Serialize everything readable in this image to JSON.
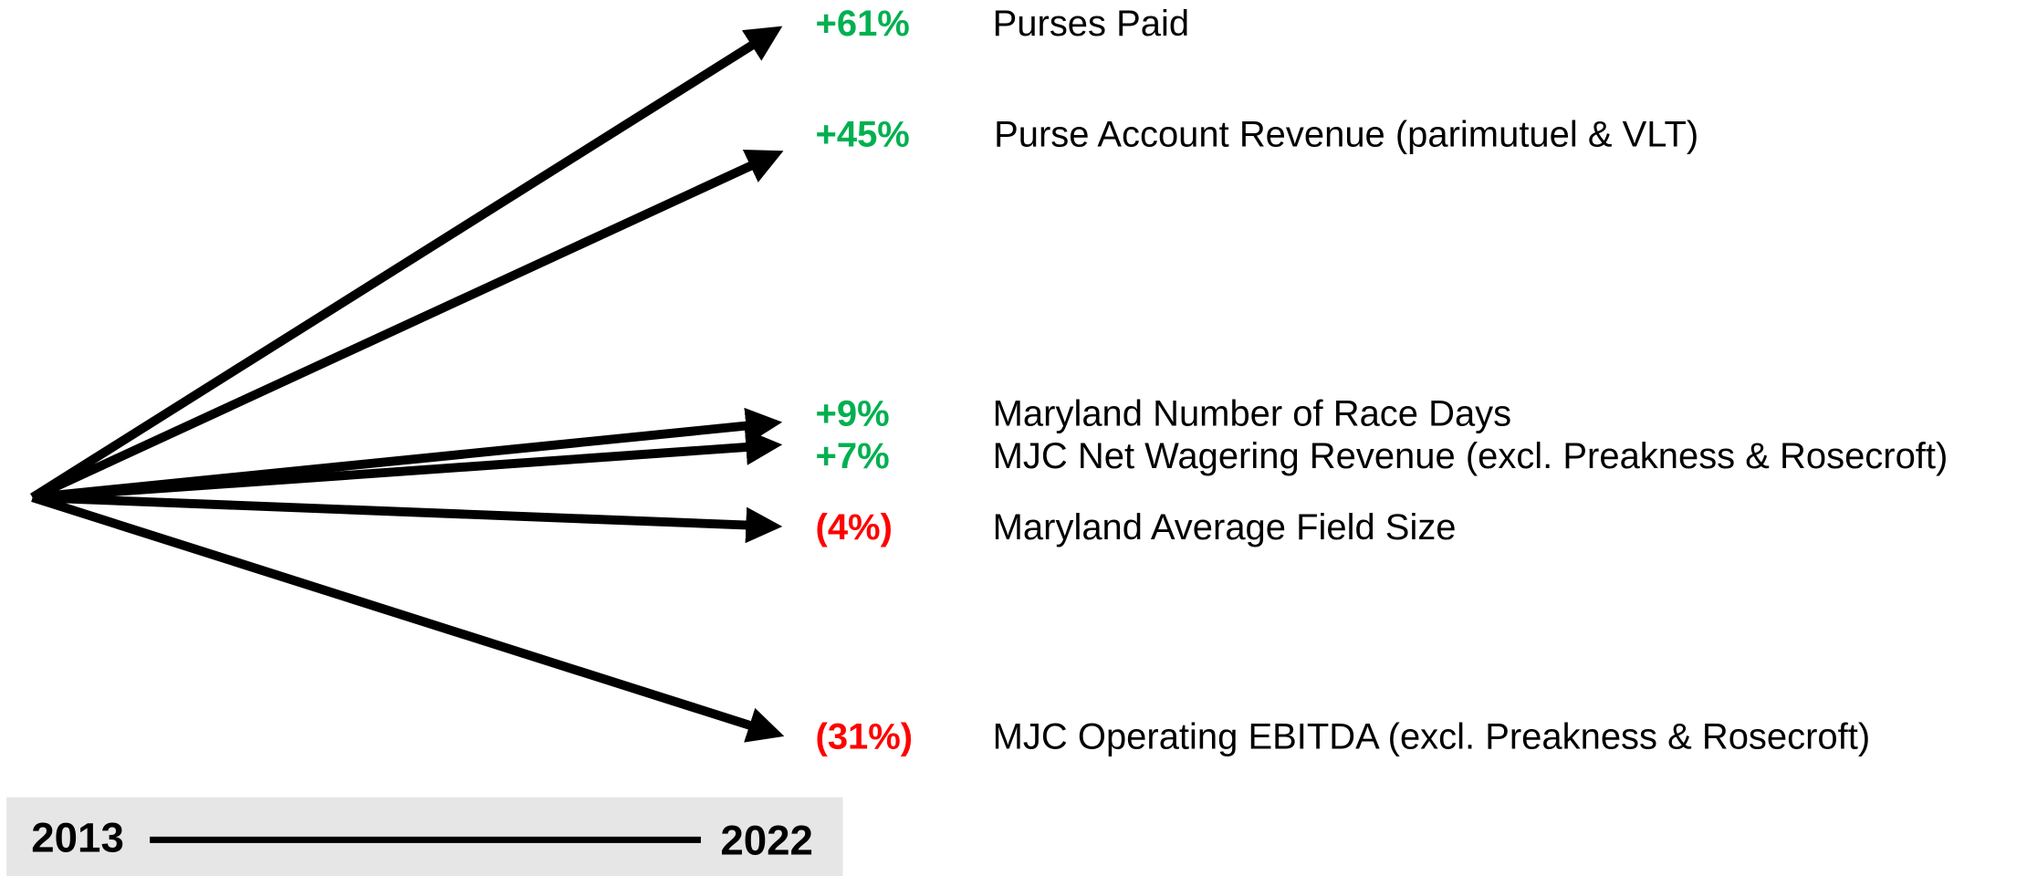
{
  "items": [
    {
      "change": "+61%",
      "label": "Purses Paid"
    },
    {
      "change": "+45%",
      "label": "Purse Account Revenue (parimutuel & VLT)"
    },
    {
      "change": "+9%",
      "label": "Maryland Number of Race Days"
    },
    {
      "change": "+7%",
      "label": "MJC Net Wagering Revenue (excl. Preakness & Rosecroft)"
    },
    {
      "change": "(4%)",
      "label": "Maryland Average Field Size"
    },
    {
      "change": "(31%)",
      "label": "MJC Operating EBITDA (excl. Preakness & Rosecroft)"
    }
  ],
  "timeline": {
    "start": "2013",
    "end": "2022"
  }
}
